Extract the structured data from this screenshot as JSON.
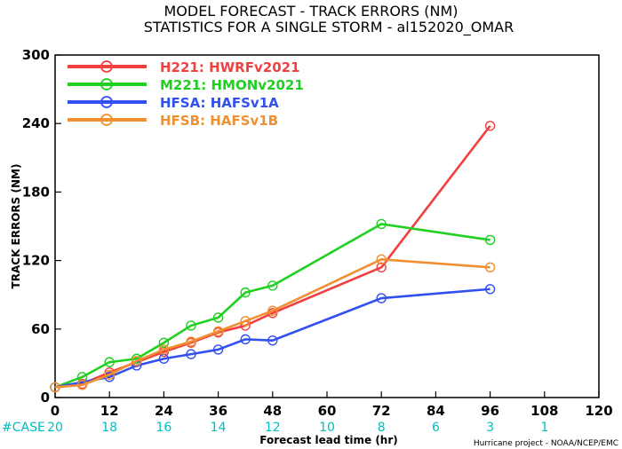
{
  "chart_data": {
    "type": "line",
    "title": "MODEL FORECAST - TRACK ERRORS (NM)",
    "subtitle": "STATISTICS FOR A SINGLE STORM - al152020_OMAR",
    "xlabel": "Forecast lead time (hr)",
    "ylabel": "TRACK ERRORS (NM)",
    "xlim": [
      0,
      120
    ],
    "ylim": [
      0,
      300
    ],
    "x_ticks": [
      "0",
      "12",
      "24",
      "36",
      "48",
      "60",
      "72",
      "84",
      "96",
      "108",
      "120"
    ],
    "y_ticks": [
      "0",
      "60",
      "120",
      "180",
      "240",
      "300"
    ],
    "case_label": "#CASE",
    "cases": [
      {
        "hr": 0,
        "n": "20"
      },
      {
        "hr": 12,
        "n": "18"
      },
      {
        "hr": 24,
        "n": "16"
      },
      {
        "hr": 36,
        "n": "14"
      },
      {
        "hr": 48,
        "n": "12"
      },
      {
        "hr": 60,
        "n": "10"
      },
      {
        "hr": 72,
        "n": "8"
      },
      {
        "hr": 84,
        "n": "6"
      },
      {
        "hr": 96,
        "n": "3"
      },
      {
        "hr": 108,
        "n": "1"
      }
    ],
    "credit": "Hurricane project - NOAA/NCEP/EMC",
    "legend_position": "top-left",
    "grid": false,
    "series": [
      {
        "name": "H221: HWRFv2021",
        "color": "#f04040",
        "x": [
          0,
          6,
          12,
          18,
          24,
          30,
          36,
          42,
          48,
          72,
          96
        ],
        "y": [
          9,
          12,
          22,
          31,
          40,
          48,
          57,
          63,
          74,
          114,
          238
        ]
      },
      {
        "name": "M221: HMONv2021",
        "color": "#20d020",
        "x": [
          0,
          6,
          12,
          18,
          24,
          30,
          36,
          42,
          48,
          72,
          96
        ],
        "y": [
          9,
          18,
          31,
          34,
          48,
          63,
          70,
          92,
          98,
          152,
          138
        ]
      },
      {
        "name": "HFSA: HAFSv1A",
        "color": "#3050f0",
        "x": [
          0,
          12,
          18,
          24,
          30,
          36,
          42,
          48,
          72,
          96
        ],
        "y": [
          9,
          18,
          28,
          34,
          38,
          42,
          51,
          50,
          87,
          95
        ]
      },
      {
        "name": "HFSB: HAFSv1B",
        "color": "#f09030",
        "x": [
          0,
          6,
          12,
          18,
          24,
          30,
          36,
          42,
          48,
          72,
          96
        ],
        "y": [
          9,
          11,
          20,
          32,
          42,
          49,
          58,
          67,
          76,
          121,
          114
        ]
      }
    ]
  }
}
